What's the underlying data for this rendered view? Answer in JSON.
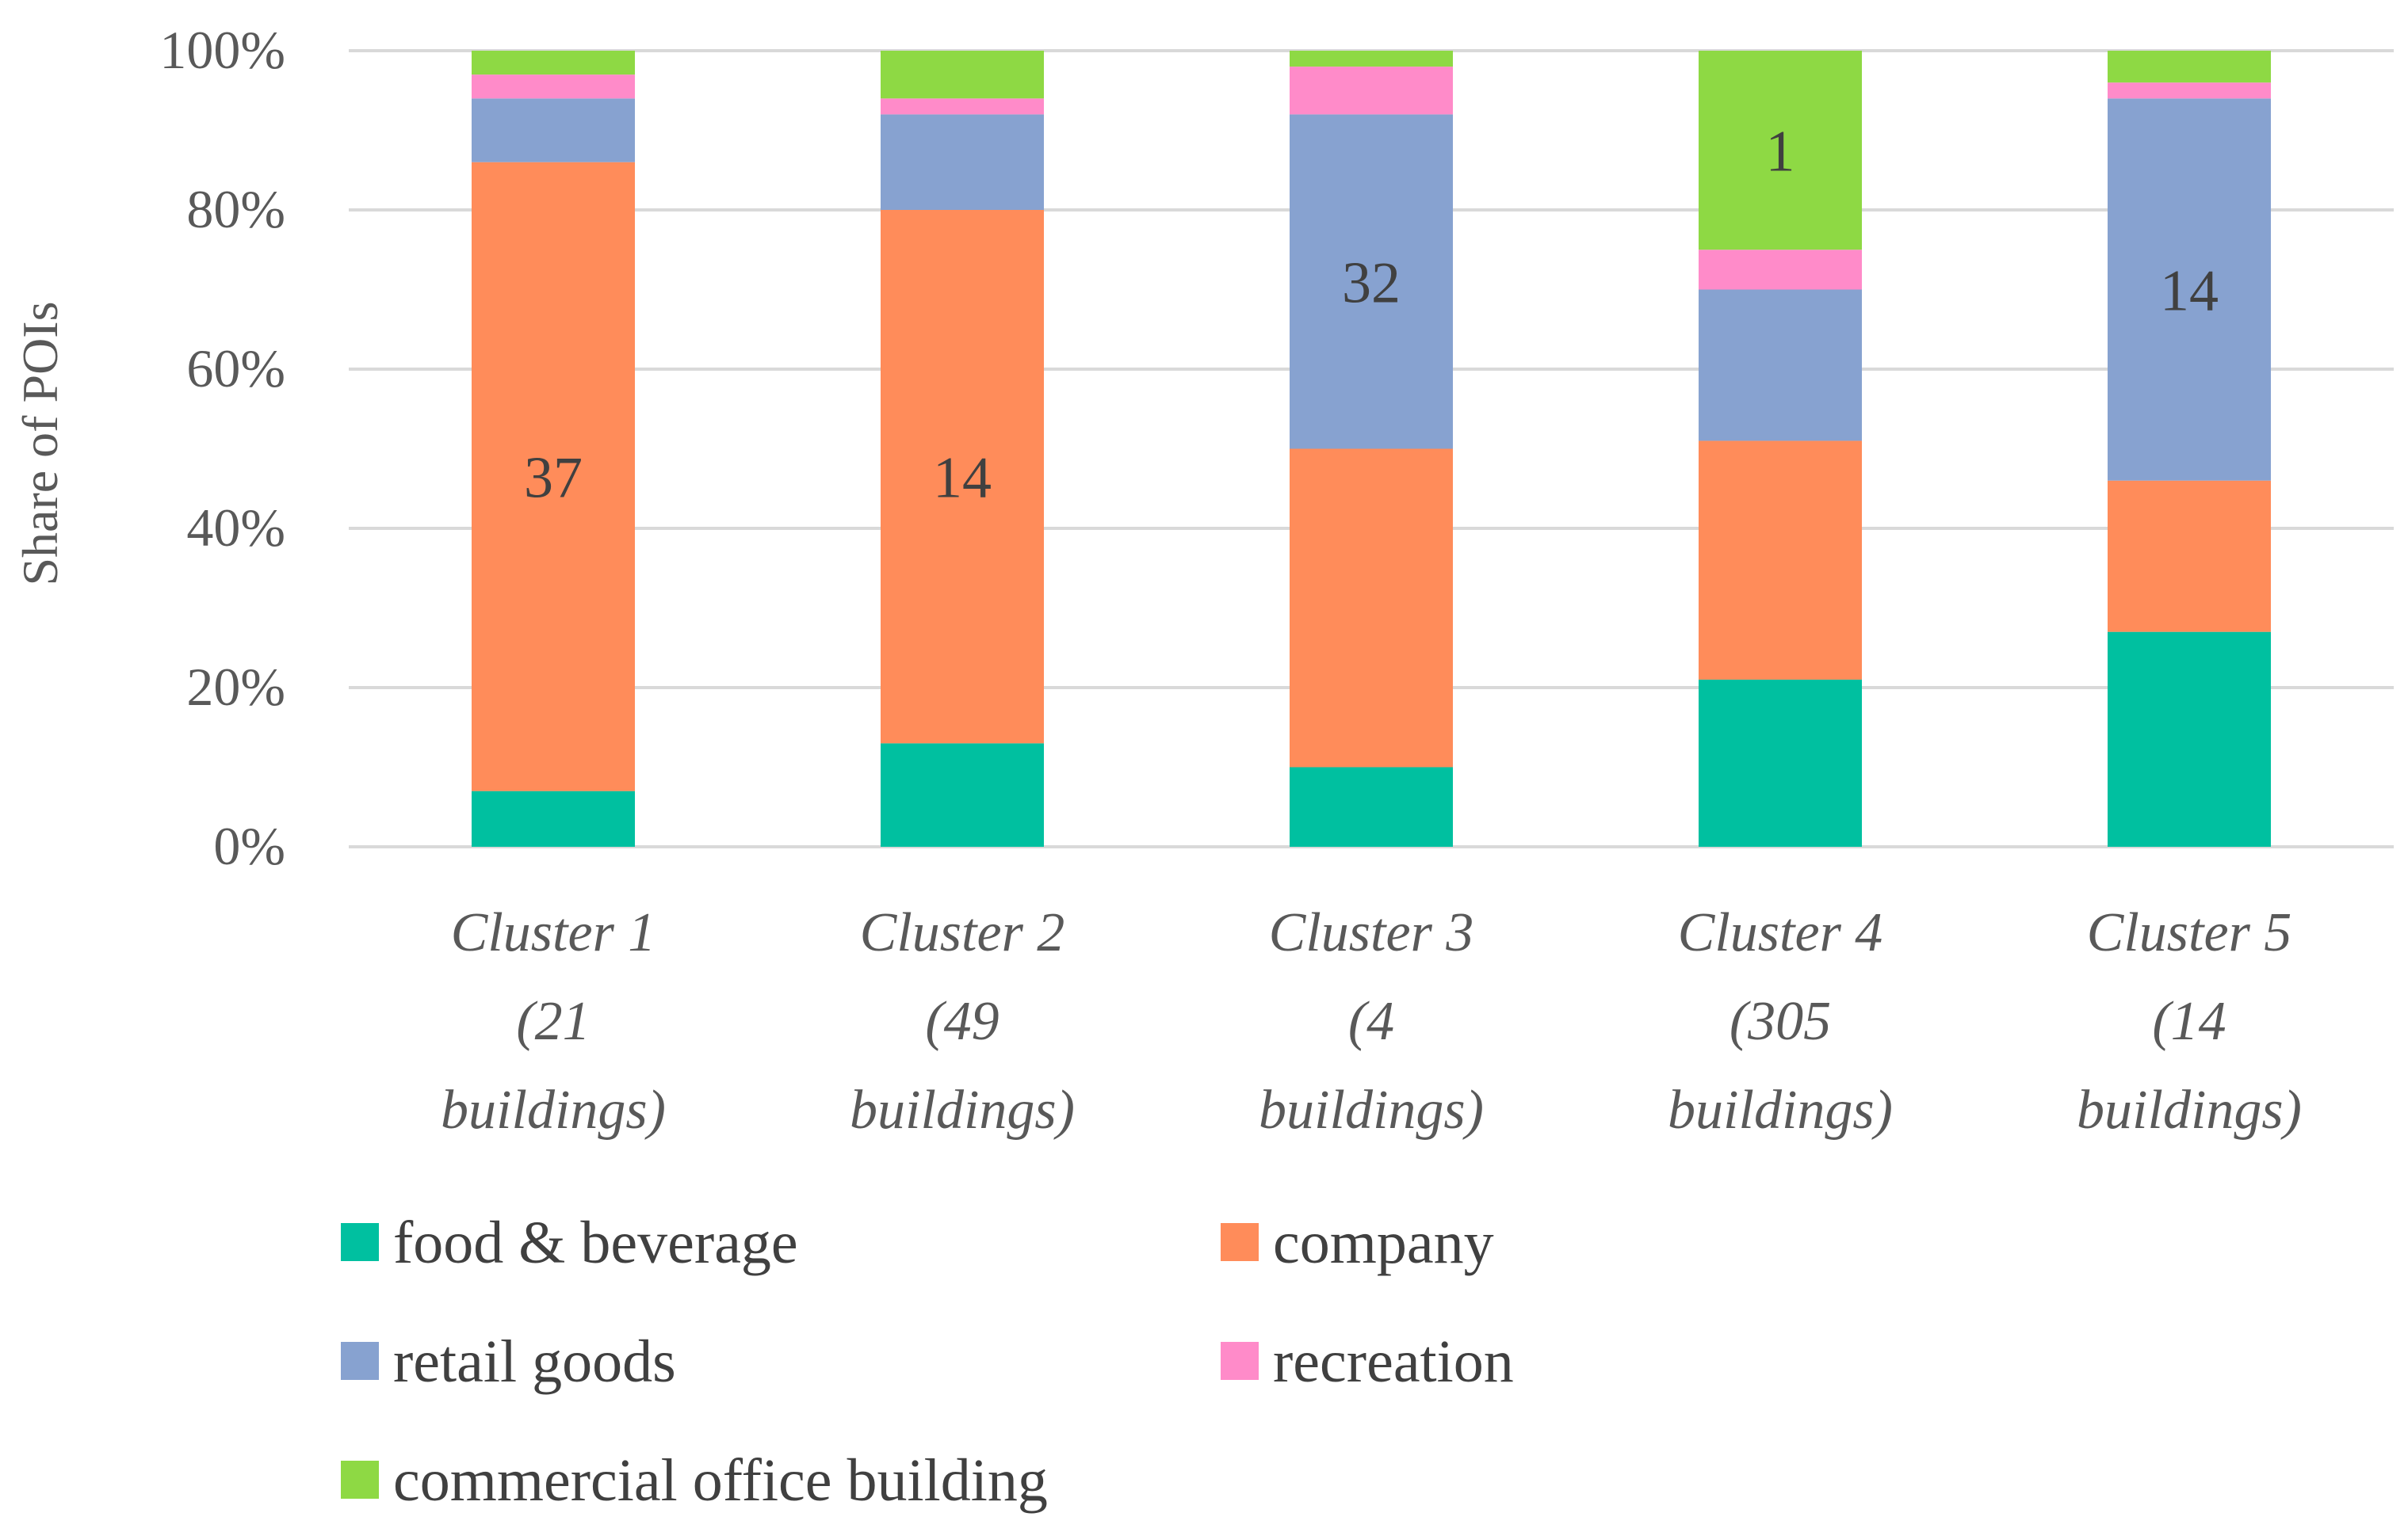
{
  "chart_data": {
    "type": "bar",
    "stacked": true,
    "ylabel": "Share of POIs",
    "xlabel": "",
    "ylim": [
      0,
      100
    ],
    "yticks": [
      "0%",
      "20%",
      "40%",
      "60%",
      "80%",
      "100%"
    ],
    "grid": true,
    "legend_position": "bottom",
    "categories": [
      [
        "Cluster 1",
        "(21",
        "buildings)"
      ],
      [
        "Cluster 2",
        "(49",
        "buildings)"
      ],
      [
        "Cluster 3",
        "(4",
        "buildings)"
      ],
      [
        "Cluster 4",
        "(305",
        "buildings)"
      ],
      [
        "Cluster 5",
        "(14",
        "buildings)"
      ]
    ],
    "series": [
      {
        "name": "food & beverage",
        "color": "#00C0A0",
        "values": [
          7,
          13,
          10,
          21,
          27
        ]
      },
      {
        "name": "company",
        "color": "#FF8C5A",
        "values": [
          79,
          67,
          40,
          30,
          19
        ]
      },
      {
        "name": "retail goods",
        "color": "#87A2D0",
        "values": [
          8,
          12,
          42,
          19,
          48
        ]
      },
      {
        "name": "recreation",
        "color": "#FF8BC9",
        "values": [
          3,
          2,
          6,
          5,
          2
        ]
      },
      {
        "name": "commercial office building",
        "color": "#8ED944",
        "values": [
          3,
          6,
          2,
          25,
          4
        ]
      }
    ],
    "data_labels": [
      {
        "category_index": 0,
        "series_index": 1,
        "text": "37"
      },
      {
        "category_index": 1,
        "series_index": 1,
        "text": "14"
      },
      {
        "category_index": 2,
        "series_index": 2,
        "text": "32"
      },
      {
        "category_index": 3,
        "series_index": 4,
        "text": "1"
      },
      {
        "category_index": 4,
        "series_index": 2,
        "text": "14"
      }
    ]
  }
}
